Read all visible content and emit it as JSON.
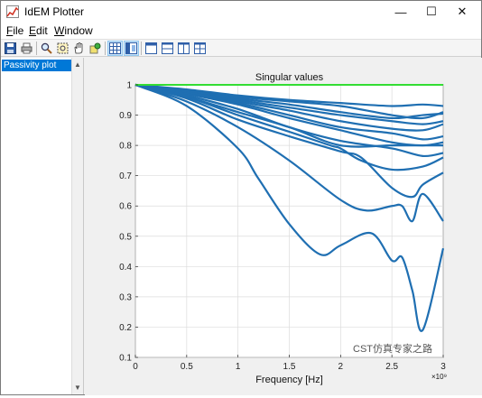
{
  "window": {
    "title": "IdEM Plotter",
    "minimize_glyph": "—",
    "maximize_glyph": "☐",
    "close_glyph": "✕"
  },
  "menu": {
    "file": {
      "hotkey": "F",
      "rest": "ile"
    },
    "edit": {
      "hotkey": "E",
      "rest": "dit"
    },
    "window": {
      "hotkey": "W",
      "rest": "indow"
    }
  },
  "toolbar": {
    "icons": [
      "save-icon",
      "print-icon",
      "zoom-icon",
      "zoom-box-icon",
      "pan-hand-icon",
      "data-cursor-icon",
      "grid-view-icon",
      "split-view-icon",
      "single-panel-icon",
      "horizontal-split-icon",
      "vertical-split-icon",
      "quad-split-icon"
    ]
  },
  "sidebar": {
    "items": [
      {
        "label": "Passivity plot",
        "selected": true
      }
    ],
    "scroll_up": "▲",
    "scroll_down": "▼"
  },
  "watermark": {
    "text": "CST仿真专家之路"
  },
  "colors": {
    "series": "#1f6fb2",
    "threshold": "#33dd33",
    "selected": "#0078d7"
  },
  "chart_data": {
    "type": "line",
    "title": "Singular values",
    "xlabel": "Frequency [Hz]",
    "ylabel": "",
    "x_exponent_label": "×10⁹",
    "xlim": [
      0,
      3
    ],
    "ylim": [
      0.1,
      1
    ],
    "xticks": [
      0,
      0.5,
      1,
      1.5,
      2,
      2.5,
      3
    ],
    "yticks": [
      0.1,
      0.2,
      0.3,
      0.4,
      0.5,
      0.6,
      0.7,
      0.8,
      0.9,
      1
    ],
    "grid": true,
    "threshold": {
      "y": 1,
      "color": "#33dd33"
    },
    "series": [
      {
        "x": [
          0,
          0.5,
          1.0,
          1.5,
          2.0,
          2.5,
          2.8,
          3.0
        ],
        "values": [
          1.0,
          0.985,
          0.965,
          0.95,
          0.94,
          0.93,
          0.935,
          0.93
        ]
      },
      {
        "x": [
          0,
          0.5,
          1.0,
          1.5,
          2.0,
          2.5,
          2.8,
          3.0
        ],
        "values": [
          1.0,
          0.98,
          0.96,
          0.945,
          0.93,
          0.9,
          0.89,
          0.91
        ]
      },
      {
        "x": [
          0,
          0.5,
          1.0,
          1.5,
          2.0,
          2.5,
          2.8,
          3.0
        ],
        "values": [
          1.0,
          0.98,
          0.955,
          0.935,
          0.91,
          0.89,
          0.9,
          0.905
        ]
      },
      {
        "x": [
          0,
          0.5,
          1.0,
          1.5,
          2.0,
          2.5,
          2.8,
          3.0
        ],
        "values": [
          1.0,
          0.975,
          0.95,
          0.925,
          0.9,
          0.88,
          0.87,
          0.88
        ]
      },
      {
        "x": [
          0,
          0.5,
          1.0,
          1.5,
          2.0,
          2.5,
          2.8,
          3.0
        ],
        "values": [
          1.0,
          0.975,
          0.945,
          0.915,
          0.88,
          0.855,
          0.85,
          0.87
        ]
      },
      {
        "x": [
          0,
          0.5,
          1.0,
          1.5,
          2.0,
          2.5,
          2.8,
          3.0
        ],
        "values": [
          1.0,
          0.97,
          0.94,
          0.9,
          0.86,
          0.84,
          0.82,
          0.83
        ]
      },
      {
        "x": [
          0,
          0.5,
          1.0,
          1.5,
          2.0,
          2.5,
          2.8,
          3.0
        ],
        "values": [
          1.0,
          0.97,
          0.935,
          0.89,
          0.85,
          0.81,
          0.8,
          0.81
        ]
      },
      {
        "x": [
          0,
          0.5,
          1.0,
          1.5,
          2.0,
          2.5,
          2.8,
          3.0
        ],
        "values": [
          1.0,
          0.965,
          0.92,
          0.86,
          0.815,
          0.79,
          0.765,
          0.775
        ]
      },
      {
        "x": [
          0,
          0.5,
          1.0,
          1.5,
          2.0,
          2.5,
          2.8,
          3.0
        ],
        "values": [
          1.0,
          0.96,
          0.91,
          0.86,
          0.8,
          0.8,
          0.8,
          0.8
        ]
      },
      {
        "x": [
          0,
          0.5,
          1.0,
          1.5,
          1.9,
          2.0,
          2.2,
          2.5,
          2.8,
          3.0
        ],
        "values": [
          1.0,
          0.96,
          0.9,
          0.845,
          0.8,
          0.79,
          0.75,
          0.72,
          0.73,
          0.76
        ]
      },
      {
        "x": [
          0,
          0.5,
          1.0,
          1.5,
          2.0,
          2.2,
          2.5,
          2.7,
          2.8,
          3.0
        ],
        "values": [
          1.0,
          0.955,
          0.885,
          0.83,
          0.78,
          0.76,
          0.66,
          0.63,
          0.67,
          0.71
        ]
      },
      {
        "x": [
          0,
          0.5,
          1.0,
          1.5,
          2.0,
          2.25,
          2.5,
          2.6,
          2.7,
          2.8,
          3.0
        ],
        "values": [
          1.0,
          0.945,
          0.86,
          0.75,
          0.62,
          0.585,
          0.6,
          0.6,
          0.55,
          0.64,
          0.55
        ]
      },
      {
        "x": [
          0,
          0.5,
          1.0,
          1.2,
          1.5,
          1.8,
          2.0,
          2.3,
          2.5,
          2.6,
          2.7,
          2.8,
          3.0
        ],
        "values": [
          1.0,
          0.93,
          0.79,
          0.69,
          0.54,
          0.44,
          0.47,
          0.51,
          0.42,
          0.43,
          0.32,
          0.19,
          0.46
        ]
      }
    ]
  }
}
